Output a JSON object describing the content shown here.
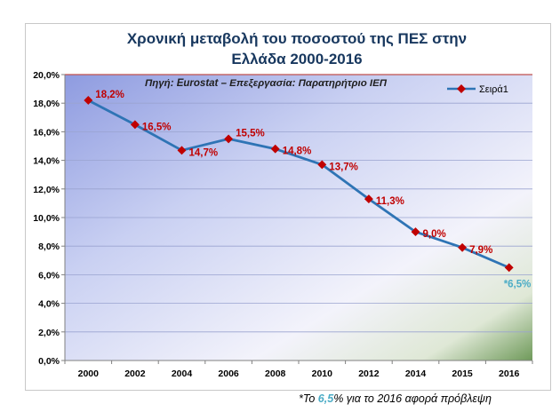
{
  "chart_data": {
    "type": "line",
    "title_lines": [
      "Χρονική μεταβολή του ποσοστού της ΠΕΣ στην",
      "Ελλάδα 2000-2016"
    ],
    "source": "Πηγή: Eurostat – Επεξεργασία: Παρατηρήτριο ΙΕΠ",
    "categories": [
      "2000",
      "2002",
      "2004",
      "2006",
      "2008",
      "2010",
      "2012",
      "2014",
      "2015",
      "2016"
    ],
    "series": [
      {
        "name": "Σειρά1",
        "values": [
          18.2,
          16.5,
          14.7,
          15.5,
          14.8,
          13.7,
          11.3,
          9.0,
          7.9,
          6.5
        ],
        "labels": [
          "18,2%",
          "16,5%",
          "14,7%",
          "15,5%",
          "14,8%",
          "13,7%",
          "11,3%",
          "9,0%",
          "7,9%",
          "*6,5%"
        ],
        "color": "#2e74b5",
        "marker_color": "#c00000"
      }
    ],
    "ylim": [
      0,
      20
    ],
    "yticks": [
      "0,0%",
      "2,0%",
      "4,0%",
      "6,0%",
      "8,0%",
      "10,0%",
      "12,0%",
      "14,0%",
      "16,0%",
      "18,0%",
      "20,0%"
    ],
    "legend_position": "top-right",
    "grid": true,
    "label_colors": {
      "normal": "#c00000",
      "forecast": "#4bacc6"
    }
  },
  "footnote": {
    "prefix": "*Το ",
    "highlight": "6,5",
    "suffix": "% για το 2016 αφορά πρόβλεψη"
  }
}
